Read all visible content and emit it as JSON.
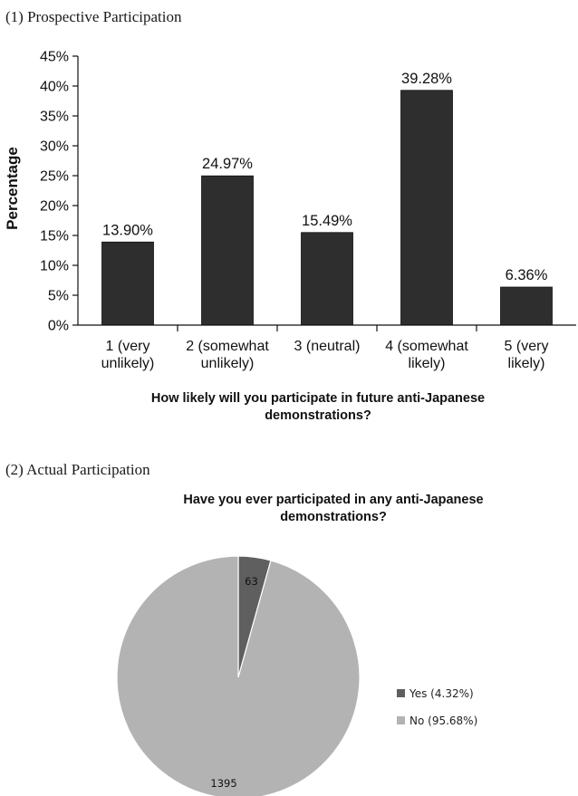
{
  "captions": {
    "first": "(1) Prospective Participation",
    "second": "(2) Actual Participation"
  },
  "chart_data": [
    {
      "type": "bar",
      "categories": [
        [
          "1 (very",
          "unlikely)"
        ],
        [
          "2 (somewhat",
          "unlikely)"
        ],
        [
          "3 (neutral)"
        ],
        [
          "4 (somewhat",
          "likely)"
        ],
        [
          "5 (very",
          "likely)"
        ]
      ],
      "values": [
        13.9,
        24.97,
        15.49,
        39.28,
        6.36
      ],
      "value_labels": [
        "13.90%",
        "24.97%",
        "15.49%",
        "39.28%",
        "6.36%"
      ],
      "ylabel": "Percentage",
      "xlabel_lines": [
        "How likely will you participate in future anti-Japanese",
        "demonstrations?"
      ],
      "ylim": [
        0,
        45
      ],
      "ytick_values": [
        0,
        5,
        10,
        15,
        20,
        25,
        30,
        35,
        40,
        45
      ],
      "ytick_labels": [
        "0%",
        "5%",
        "10%",
        "15%",
        "20%",
        "25%",
        "30%",
        "35%",
        "40%",
        "45%"
      ],
      "bar_color": "#2e2e2e",
      "grid": false
    },
    {
      "type": "pie",
      "title_lines": [
        "Have you ever participated in any anti-Japanese",
        "demonstrations?"
      ],
      "slices": [
        {
          "label": "Yes (4.32%)",
          "value": 63,
          "value_label": "63",
          "color": "#5f5f5f"
        },
        {
          "label": "No (95.68%)",
          "value": 1395,
          "value_label": "1395",
          "color": "#b3b3b3"
        }
      ],
      "legend_position": "right"
    }
  ]
}
